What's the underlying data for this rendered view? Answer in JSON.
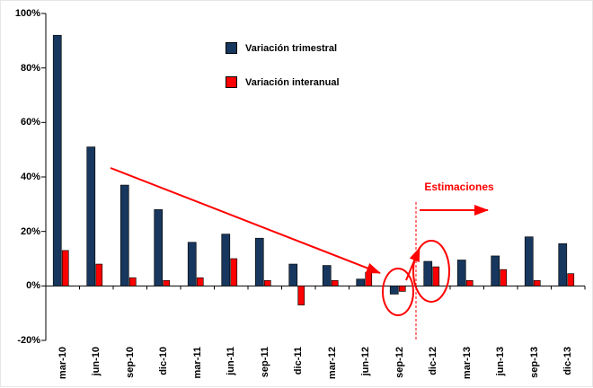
{
  "chart_data": {
    "type": "bar",
    "title": "",
    "categories": [
      "mar-10",
      "jun-10",
      "sep-10",
      "dic-10",
      "mar-11",
      "jun-11",
      "sep-11",
      "dic-11",
      "mar-12",
      "jun-12",
      "sep-12",
      "dic-12",
      "mar-13",
      "jun-13",
      "sep-13",
      "dic-13"
    ],
    "series": [
      {
        "key": "trimestral",
        "name": "Variación trimestral",
        "color": "#17375E",
        "values": [
          92,
          51,
          37,
          28,
          16,
          19,
          17.5,
          8,
          7.5,
          2.5,
          -3,
          9,
          9.5,
          11,
          18,
          15.5
        ]
      },
      {
        "key": "interanual",
        "name": "Variación interanual",
        "color": "#FF0000",
        "values": [
          13,
          8,
          3,
          2,
          3,
          10,
          2,
          -7,
          2,
          5,
          -2,
          7,
          2,
          6,
          2,
          4.5
        ]
      }
    ],
    "ylim": [
      -20,
      100
    ],
    "yticks": [
      {
        "value": 100,
        "label": "100%"
      },
      {
        "value": 80,
        "label": "80%"
      },
      {
        "value": 60,
        "label": "60%"
      },
      {
        "value": 40,
        "label": "40%"
      },
      {
        "value": 20,
        "label": "20%"
      },
      {
        "value": 0,
        "label": "0%"
      },
      {
        "value": -20,
        "label": "-20%"
      }
    ],
    "grid": false,
    "legend_position": "top-center"
  },
  "annotations": {
    "estimaciones_label": "Estimaciones",
    "accent_color": "#FF0000"
  }
}
